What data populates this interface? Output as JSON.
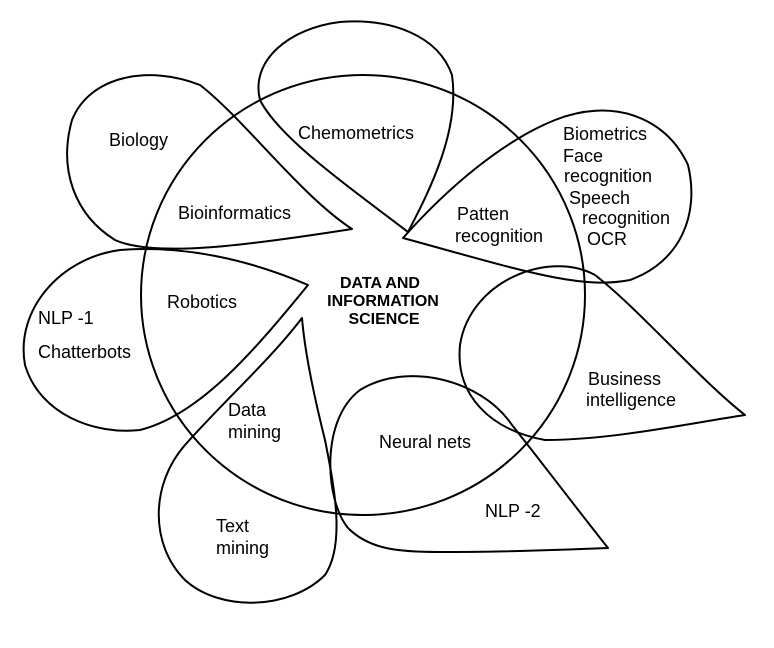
{
  "center": {
    "line1": "DATA  AND",
    "line2": "INFORMATION",
    "line3": "SCIENCE"
  },
  "inner_labels": {
    "chemometrics": "Chemometrics",
    "bioinformatics": "Bioinformatics",
    "patten_recognition_1": "Patten",
    "patten_recognition_2": "recognition",
    "robotics": "Robotics",
    "data_mining_1": "Data",
    "data_mining_2": "mining",
    "neural_nets": "Neural nets",
    "business_intelligence_1": "Business",
    "business_intelligence_2": "intelligence"
  },
  "outer_labels": {
    "biology": "Biology",
    "biometrics": "Biometrics",
    "face_recognition_1": "Face",
    "face_recognition_2": "recognition",
    "speech_recognition_1": "Speech",
    "speech_recognition_2": "recognition",
    "ocr": "OCR",
    "nlp1": "NLP -1",
    "chatterbots": "Chatterbots",
    "text_mining_1": "Text",
    "text_mining_2": "mining",
    "nlp2": "NLP -2"
  },
  "colors": {
    "stroke": "#000000",
    "background": "#ffffff"
  }
}
